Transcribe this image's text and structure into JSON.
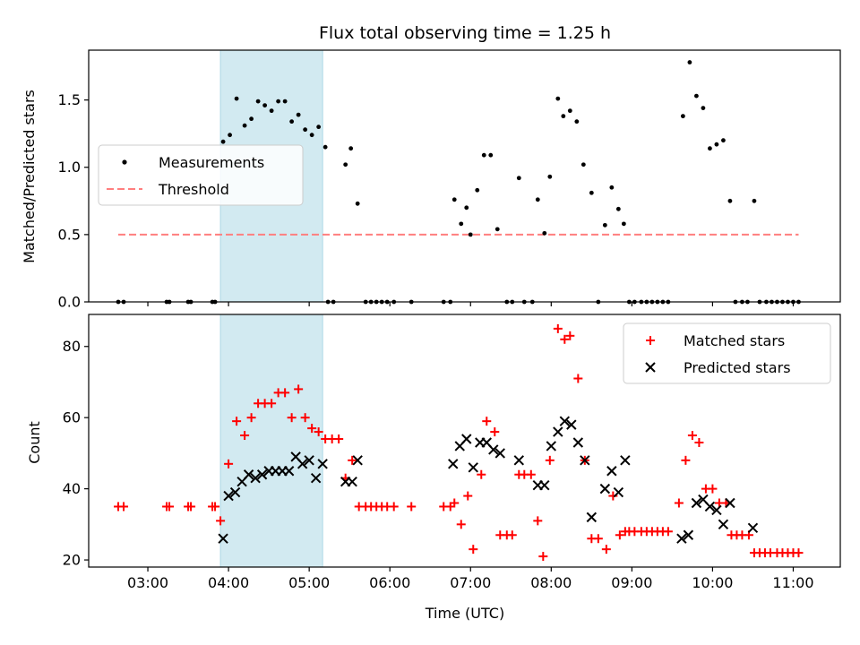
{
  "title": "Flux total observing time = 1.25 h",
  "colors": {
    "measurement": "#000000",
    "threshold": "#ff7f7f",
    "matched": "#ff0000",
    "predicted": "#000000",
    "shade": "#add8e6"
  },
  "chart_data": [
    {
      "type": "scatter",
      "panel": "top",
      "xlabel": "",
      "ylabel": "Matched/Predicted stars",
      "xlim": [
        "02:16",
        "11:35"
      ],
      "ylim": [
        0,
        1.87
      ],
      "yticks": [
        0.0,
        0.5,
        1.0,
        1.5
      ],
      "ytick_labels": [
        "0.0",
        "0.5",
        "1.0",
        "1.5"
      ],
      "shaded_interval": [
        "03:54",
        "05:10"
      ],
      "legend_position": "center-left",
      "series": [
        {
          "name": "Measurements",
          "marker": "dot",
          "points": [
            [
              "02:38",
              0
            ],
            [
              "02:42",
              0
            ],
            [
              "03:14",
              0
            ],
            [
              "03:16",
              0
            ],
            [
              "03:30",
              0
            ],
            [
              "03:32",
              0
            ],
            [
              "03:48",
              0
            ],
            [
              "03:50",
              0
            ],
            [
              "03:56",
              1.19
            ],
            [
              "04:01",
              1.24
            ],
            [
              "04:06",
              1.51
            ],
            [
              "04:12",
              1.31
            ],
            [
              "04:17",
              1.36
            ],
            [
              "04:22",
              1.49
            ],
            [
              "04:27",
              1.46
            ],
            [
              "04:32",
              1.42
            ],
            [
              "04:37",
              1.49
            ],
            [
              "04:42",
              1.49
            ],
            [
              "04:47",
              1.34
            ],
            [
              "04:52",
              1.39
            ],
            [
              "04:57",
              1.28
            ],
            [
              "05:02",
              1.24
            ],
            [
              "05:07",
              1.3
            ],
            [
              "05:12",
              1.15
            ],
            [
              "05:14",
              0
            ],
            [
              "05:18",
              0
            ],
            [
              "05:27",
              1.02
            ],
            [
              "05:31",
              1.14
            ],
            [
              "05:36",
              0.73
            ],
            [
              "05:42",
              0
            ],
            [
              "05:46",
              0
            ],
            [
              "05:50",
              0
            ],
            [
              "05:54",
              0
            ],
            [
              "05:58",
              0
            ],
            [
              "06:03",
              0
            ],
            [
              "06:16",
              0
            ],
            [
              "06:40",
              0
            ],
            [
              "06:45",
              0
            ],
            [
              "06:48",
              0.76
            ],
            [
              "06:53",
              0.58
            ],
            [
              "06:57",
              0.7
            ],
            [
              "07:00",
              0.5
            ],
            [
              "07:05",
              0.83
            ],
            [
              "07:10",
              1.09
            ],
            [
              "07:15",
              1.09
            ],
            [
              "07:20",
              0.54
            ],
            [
              "07:27",
              0
            ],
            [
              "07:31",
              0
            ],
            [
              "07:36",
              0.92
            ],
            [
              "07:40",
              0
            ],
            [
              "07:46",
              0
            ],
            [
              "07:50",
              0.76
            ],
            [
              "07:55",
              0.51
            ],
            [
              "07:59",
              0.93
            ],
            [
              "08:05",
              1.51
            ],
            [
              "08:09",
              1.38
            ],
            [
              "08:14",
              1.42
            ],
            [
              "08:19",
              1.34
            ],
            [
              "08:24",
              1.02
            ],
            [
              "08:30",
              0.81
            ],
            [
              "08:35",
              0
            ],
            [
              "08:40",
              0.57
            ],
            [
              "08:45",
              0.85
            ],
            [
              "08:50",
              0.69
            ],
            [
              "08:54",
              0.58
            ],
            [
              "08:58",
              0
            ],
            [
              "09:02",
              0
            ],
            [
              "09:07",
              0
            ],
            [
              "09:11",
              0
            ],
            [
              "09:15",
              0
            ],
            [
              "09:19",
              0
            ],
            [
              "09:23",
              0
            ],
            [
              "09:27",
              0
            ],
            [
              "09:38",
              1.38
            ],
            [
              "09:43",
              1.78
            ],
            [
              "09:48",
              1.53
            ],
            [
              "09:53",
              1.44
            ],
            [
              "09:58",
              1.14
            ],
            [
              "10:03",
              1.17
            ],
            [
              "10:08",
              1.2
            ],
            [
              "10:13",
              0.75
            ],
            [
              "10:17",
              0
            ],
            [
              "10:22",
              0
            ],
            [
              "10:26",
              0
            ],
            [
              "10:31",
              0.75
            ],
            [
              "10:35",
              0
            ],
            [
              "10:40",
              0
            ],
            [
              "10:44",
              0
            ],
            [
              "10:48",
              0
            ],
            [
              "10:52",
              0
            ],
            [
              "10:56",
              0
            ],
            [
              "11:00",
              0
            ],
            [
              "11:04",
              0
            ]
          ]
        },
        {
          "name": "Threshold",
          "line": "dashed",
          "points": [
            [
              "02:38",
              0.5
            ],
            [
              "11:04",
              0.5
            ]
          ]
        }
      ]
    },
    {
      "type": "scatter",
      "panel": "bottom",
      "xlabel": "Time (UTC)",
      "ylabel": "Count",
      "xlim": [
        "02:16",
        "11:35"
      ],
      "ylim": [
        18,
        89
      ],
      "xticks": [
        "03:00",
        "04:00",
        "05:00",
        "06:00",
        "07:00",
        "08:00",
        "09:00",
        "10:00",
        "11:00"
      ],
      "yticks": [
        20,
        40,
        60,
        80
      ],
      "ytick_labels": [
        "20",
        "40",
        "60",
        "80"
      ],
      "shaded_interval": [
        "03:54",
        "05:10"
      ],
      "legend_position": "top-right",
      "series": [
        {
          "name": "Matched stars",
          "marker": "plus",
          "points": [
            [
              "02:38",
              35
            ],
            [
              "02:42",
              35
            ],
            [
              "03:14",
              35
            ],
            [
              "03:16",
              35
            ],
            [
              "03:30",
              35
            ],
            [
              "03:32",
              35
            ],
            [
              "03:48",
              35
            ],
            [
              "03:50",
              35
            ],
            [
              "03:54",
              31
            ],
            [
              "04:00",
              47
            ],
            [
              "04:06",
              59
            ],
            [
              "04:12",
              55
            ],
            [
              "04:17",
              60
            ],
            [
              "04:22",
              64
            ],
            [
              "04:27",
              64
            ],
            [
              "04:32",
              64
            ],
            [
              "04:37",
              67
            ],
            [
              "04:42",
              67
            ],
            [
              "04:47",
              60
            ],
            [
              "04:52",
              68
            ],
            [
              "04:57",
              60
            ],
            [
              "05:02",
              57
            ],
            [
              "05:07",
              56
            ],
            [
              "05:12",
              54
            ],
            [
              "05:17",
              54
            ],
            [
              "05:22",
              54
            ],
            [
              "05:27",
              43
            ],
            [
              "05:32",
              48
            ],
            [
              "05:37",
              35
            ],
            [
              "05:42",
              35
            ],
            [
              "05:46",
              35
            ],
            [
              "05:50",
              35
            ],
            [
              "05:54",
              35
            ],
            [
              "05:58",
              35
            ],
            [
              "06:03",
              35
            ],
            [
              "06:16",
              35
            ],
            [
              "06:40",
              35
            ],
            [
              "06:45",
              35
            ],
            [
              "06:48",
              36
            ],
            [
              "06:53",
              30
            ],
            [
              "06:58",
              38
            ],
            [
              "07:02",
              23
            ],
            [
              "07:08",
              44
            ],
            [
              "07:12",
              59
            ],
            [
              "07:18",
              56
            ],
            [
              "07:22",
              27
            ],
            [
              "07:27",
              27
            ],
            [
              "07:31",
              27
            ],
            [
              "07:36",
              44
            ],
            [
              "07:40",
              44
            ],
            [
              "07:45",
              44
            ],
            [
              "07:50",
              31
            ],
            [
              "07:54",
              21
            ],
            [
              "07:59",
              48
            ],
            [
              "08:05",
              85
            ],
            [
              "08:10",
              82
            ],
            [
              "08:14",
              83
            ],
            [
              "08:20",
              71
            ],
            [
              "08:25",
              48
            ],
            [
              "08:30",
              26
            ],
            [
              "08:35",
              26
            ],
            [
              "08:41",
              23
            ],
            [
              "08:46",
              38
            ],
            [
              "08:51",
              27
            ],
            [
              "08:55",
              28
            ],
            [
              "08:58",
              28
            ],
            [
              "09:02",
              28
            ],
            [
              "09:07",
              28
            ],
            [
              "09:11",
              28
            ],
            [
              "09:15",
              28
            ],
            [
              "09:19",
              28
            ],
            [
              "09:23",
              28
            ],
            [
              "09:27",
              28
            ],
            [
              "09:35",
              36
            ],
            [
              "09:40",
              48
            ],
            [
              "09:45",
              55
            ],
            [
              "09:50",
              53
            ],
            [
              "09:55",
              40
            ],
            [
              "10:00",
              40
            ],
            [
              "10:05",
              36
            ],
            [
              "10:10",
              36
            ],
            [
              "10:14",
              27
            ],
            [
              "10:18",
              27
            ],
            [
              "10:22",
              27
            ],
            [
              "10:27",
              27
            ],
            [
              "10:31",
              22
            ],
            [
              "10:35",
              22
            ],
            [
              "10:39",
              22
            ],
            [
              "10:43",
              22
            ],
            [
              "10:48",
              22
            ],
            [
              "10:52",
              22
            ],
            [
              "10:56",
              22
            ],
            [
              "11:00",
              22
            ],
            [
              "11:04",
              22
            ]
          ]
        },
        {
          "name": "Predicted stars",
          "marker": "x",
          "points": [
            [
              "03:56",
              26
            ],
            [
              "04:00",
              38
            ],
            [
              "04:05",
              39
            ],
            [
              "04:10",
              42
            ],
            [
              "04:15",
              44
            ],
            [
              "04:20",
              43
            ],
            [
              "04:25",
              44
            ],
            [
              "04:30",
              45
            ],
            [
              "04:35",
              45
            ],
            [
              "04:40",
              45
            ],
            [
              "04:45",
              45
            ],
            [
              "04:50",
              49
            ],
            [
              "04:55",
              47
            ],
            [
              "05:00",
              48
            ],
            [
              "05:05",
              43
            ],
            [
              "05:10",
              47
            ],
            [
              "05:27",
              42
            ],
            [
              "05:32",
              42
            ],
            [
              "05:36",
              48
            ],
            [
              "06:47",
              47
            ],
            [
              "06:52",
              52
            ],
            [
              "06:57",
              54
            ],
            [
              "07:02",
              46
            ],
            [
              "07:07",
              53
            ],
            [
              "07:12",
              53
            ],
            [
              "07:17",
              51
            ],
            [
              "07:22",
              50
            ],
            [
              "07:36",
              48
            ],
            [
              "07:50",
              41
            ],
            [
              "07:55",
              41
            ],
            [
              "08:00",
              52
            ],
            [
              "08:05",
              56
            ],
            [
              "08:10",
              59
            ],
            [
              "08:15",
              58
            ],
            [
              "08:20",
              53
            ],
            [
              "08:25",
              48
            ],
            [
              "08:30",
              32
            ],
            [
              "08:40",
              40
            ],
            [
              "08:45",
              45
            ],
            [
              "08:50",
              39
            ],
            [
              "08:55",
              48
            ],
            [
              "09:37",
              26
            ],
            [
              "09:42",
              27
            ],
            [
              "09:48",
              36
            ],
            [
              "09:53",
              37
            ],
            [
              "09:58",
              35
            ],
            [
              "10:03",
              34
            ],
            [
              "10:08",
              30
            ],
            [
              "10:13",
              36
            ],
            [
              "10:30",
              29
            ]
          ]
        }
      ]
    }
  ]
}
